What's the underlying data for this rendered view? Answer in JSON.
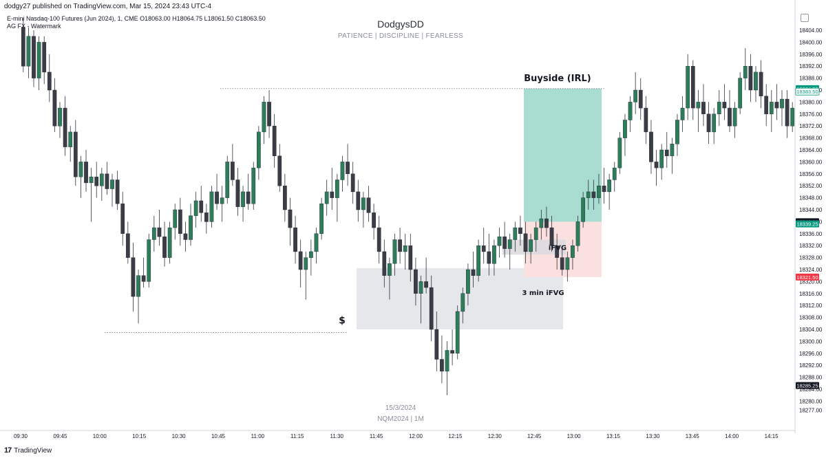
{
  "header": {
    "publisher": "dodgy27 published on TradingView.com, Mar 15, 2024 23:43 UTC-4",
    "symbol_line": "E-mini Nasdaq-100 Futures (Jun 2024), 1, CME  O18063.00  H18064.75  L18061.50  C18063.50",
    "indicator": "AG FX - Watermark"
  },
  "watermark": {
    "title": "DodgysDD",
    "subtitle": "PATIENCE   |   DISCIPLINE   |   FEARLESS",
    "date": "15/3/2024",
    "symbol_interval": "NQM2024  |  1M"
  },
  "footer": {
    "brand": "TradingView",
    "logo": "17"
  },
  "colors": {
    "bull": "#2e7d5a",
    "bear": "#3a3d45",
    "buy_zone": "#a9ddd1",
    "sell_zone": "#fbe0e0",
    "fvg_zone": "#e6e7eb",
    "ifvg_small": "#d9d9dd",
    "price_tag_green": "#089981",
    "price_tag_red": "#f23645",
    "price_tag_dark": "#131722"
  },
  "chart_data": {
    "type": "candlestick",
    "ylim": [
      18275,
      18408
    ],
    "y_ticks": [
      "18404.00",
      "18400.00",
      "18396.00",
      "18392.00",
      "18388.00",
      "18384.00",
      "18380.00",
      "18376.00",
      "18372.00",
      "18368.00",
      "18364.00",
      "18360.00",
      "18356.00",
      "18352.00",
      "18348.00",
      "18344.00",
      "18340.00",
      "18336.00",
      "18332.00",
      "18328.00",
      "18324.00",
      "18320.00",
      "18316.00",
      "18312.00",
      "18308.00",
      "18304.00",
      "18300.00",
      "18296.00",
      "18292.00",
      "18288.00",
      "18284.00",
      "18280.00",
      "18277.00"
    ],
    "x_ticks": [
      "09:30",
      "09:45",
      "10:00",
      "10:15",
      "10:30",
      "10:45",
      "11:00",
      "11:15",
      "11:30",
      "11:45",
      "12:00",
      "12:15",
      "12:30",
      "12:45",
      "13:00",
      "13:15",
      "13:30",
      "13:45",
      "14:00",
      "14:15"
    ],
    "price_tags": [
      {
        "label": "18384.50",
        "price": 18384.5,
        "style": "green"
      },
      {
        "label": "18383.50",
        "price": 18383.5,
        "style": "outline"
      },
      {
        "label": "18340.00",
        "price": 18340.0,
        "style": "dark"
      },
      {
        "label": "18339.25",
        "price": 18339.25,
        "style": "green"
      },
      {
        "label": "18321.50",
        "price": 18321.5,
        "style": "red"
      },
      {
        "label": "18285.25",
        "price": 18285.25,
        "style": "dark"
      }
    ],
    "candles_ohlc": [
      [
        18405,
        18408,
        18390,
        18392
      ],
      [
        18392,
        18405,
        18388,
        18402
      ],
      [
        18402,
        18404,
        18385,
        18388
      ],
      [
        18388,
        18402,
        18384,
        18400
      ],
      [
        18400,
        18402,
        18386,
        18390
      ],
      [
        18390,
        18396,
        18380,
        18384
      ],
      [
        18384,
        18388,
        18370,
        18372
      ],
      [
        18372,
        18380,
        18368,
        18378
      ],
      [
        18378,
        18382,
        18362,
        18365
      ],
      [
        18365,
        18372,
        18360,
        18370
      ],
      [
        18370,
        18374,
        18352,
        18355
      ],
      [
        18355,
        18362,
        18348,
        18360
      ],
      [
        18360,
        18364,
        18350,
        18353
      ],
      [
        18353,
        18358,
        18340,
        18355
      ],
      [
        18355,
        18360,
        18348,
        18352
      ],
      [
        18352,
        18358,
        18347,
        18356
      ],
      [
        18356,
        18360,
        18349,
        18351
      ],
      [
        18351,
        18356,
        18345,
        18354
      ],
      [
        18354,
        18357,
        18344,
        18346
      ],
      [
        18346,
        18350,
        18332,
        18336
      ],
      [
        18336,
        18340,
        18326,
        18328
      ],
      [
        18328,
        18333,
        18310,
        18315
      ],
      [
        18315,
        18324,
        18306,
        18322
      ],
      [
        18322,
        18328,
        18318,
        18320
      ],
      [
        18320,
        18336,
        18318,
        18334
      ],
      [
        18334,
        18342,
        18330,
        18338
      ],
      [
        18338,
        18344,
        18332,
        18335
      ],
      [
        18335,
        18340,
        18325,
        18328
      ],
      [
        18328,
        18340,
        18326,
        18338
      ],
      [
        18338,
        18346,
        18334,
        18344
      ],
      [
        18344,
        18348,
        18332,
        18336
      ],
      [
        18336,
        18340,
        18330,
        18334
      ],
      [
        18334,
        18346,
        18332,
        18342
      ],
      [
        18342,
        18350,
        18338,
        18347
      ],
      [
        18347,
        18352,
        18340,
        18343
      ],
      [
        18343,
        18346,
        18336,
        18340
      ],
      [
        18340,
        18352,
        18338,
        18350
      ],
      [
        18350,
        18356,
        18344,
        18346
      ],
      [
        18346,
        18352,
        18340,
        18348
      ],
      [
        18348,
        18362,
        18346,
        18360
      ],
      [
        18360,
        18366,
        18352,
        18354
      ],
      [
        18354,
        18358,
        18342,
        18345
      ],
      [
        18345,
        18352,
        18340,
        18350
      ],
      [
        18350,
        18356,
        18344,
        18346
      ],
      [
        18346,
        18360,
        18344,
        18358
      ],
      [
        18358,
        18372,
        18354,
        18370
      ],
      [
        18370,
        18382,
        18366,
        18380
      ],
      [
        18380,
        18384,
        18368,
        18372
      ],
      [
        18372,
        18376,
        18358,
        18362
      ],
      [
        18362,
        18366,
        18350,
        18352
      ],
      [
        18352,
        18356,
        18340,
        18344
      ],
      [
        18344,
        18348,
        18332,
        18338
      ],
      [
        18338,
        18342,
        18326,
        18330
      ],
      [
        18330,
        18334,
        18318,
        18324
      ],
      [
        18324,
        18330,
        18314,
        18328
      ],
      [
        18328,
        18334,
        18322,
        18330
      ],
      [
        18330,
        18338,
        18326,
        18336
      ],
      [
        18336,
        18348,
        18334,
        18346
      ],
      [
        18346,
        18354,
        18342,
        18350
      ],
      [
        18350,
        18358,
        18344,
        18348
      ],
      [
        18348,
        18356,
        18340,
        18354
      ],
      [
        18354,
        18362,
        18350,
        18360
      ],
      [
        18360,
        18366,
        18352,
        18356
      ],
      [
        18356,
        18360,
        18346,
        18350
      ],
      [
        18350,
        18354,
        18340,
        18344
      ],
      [
        18344,
        18350,
        18338,
        18348
      ],
      [
        18348,
        18352,
        18340,
        18343
      ],
      [
        18343,
        18346,
        18334,
        18338
      ],
      [
        18338,
        18342,
        18326,
        18330
      ],
      [
        18330,
        18334,
        18318,
        18322
      ],
      [
        18322,
        18328,
        18314,
        18326
      ],
      [
        18326,
        18336,
        18322,
        18334
      ],
      [
        18334,
        18338,
        18326,
        18330
      ],
      [
        18330,
        18336,
        18324,
        18332
      ],
      [
        18332,
        18336,
        18320,
        18324
      ],
      [
        18324,
        18328,
        18312,
        18316
      ],
      [
        18316,
        18322,
        18306,
        18320
      ],
      [
        18320,
        18328,
        18316,
        18318
      ],
      [
        18318,
        18322,
        18300,
        18304
      ],
      [
        18304,
        18310,
        18290,
        18294
      ],
      [
        18294,
        18302,
        18286,
        18290
      ],
      [
        18290,
        18300,
        18282,
        18297
      ],
      [
        18297,
        18304,
        18292,
        18296
      ],
      [
        18296,
        18312,
        18294,
        18310
      ],
      [
        18310,
        18318,
        18306,
        18316
      ],
      [
        18316,
        18326,
        18312,
        18324
      ],
      [
        18324,
        18330,
        18318,
        18322
      ],
      [
        18322,
        18334,
        18320,
        18332
      ],
      [
        18332,
        18338,
        18326,
        18330
      ],
      [
        18330,
        18336,
        18322,
        18326
      ],
      [
        18326,
        18334,
        18322,
        18332
      ],
      [
        18332,
        18338,
        18328,
        18335
      ],
      [
        18335,
        18340,
        18328,
        18331
      ],
      [
        18331,
        18336,
        18324,
        18334
      ],
      [
        18334,
        18340,
        18330,
        18338
      ],
      [
        18338,
        18342,
        18332,
        18336
      ],
      [
        18336,
        18340,
        18326,
        18330
      ],
      [
        18330,
        18336,
        18326,
        18334
      ],
      [
        18334,
        18340,
        18330,
        18338
      ],
      [
        18338,
        18344,
        18334,
        18341
      ],
      [
        18341,
        18345,
        18335,
        18338
      ],
      [
        18338,
        18342,
        18330,
        18332
      ],
      [
        18332,
        18336,
        18324,
        18328
      ],
      [
        18328,
        18332,
        18322,
        18324
      ],
      [
        18324,
        18330,
        18320,
        18328
      ],
      [
        18328,
        18334,
        18324,
        18332
      ],
      [
        18332,
        18342,
        18330,
        18340
      ],
      [
        18340,
        18350,
        18338,
        18348
      ],
      [
        18348,
        18354,
        18344,
        18350
      ],
      [
        18350,
        18354,
        18344,
        18348
      ],
      [
        18348,
        18356,
        18346,
        18352
      ],
      [
        18352,
        18358,
        18346,
        18350
      ],
      [
        18350,
        18356,
        18344,
        18354
      ],
      [
        18354,
        18360,
        18350,
        18358
      ],
      [
        18358,
        18370,
        18356,
        18368
      ],
      [
        18368,
        18376,
        18362,
        18374
      ],
      [
        18374,
        18382,
        18370,
        18380
      ],
      [
        18380,
        18390,
        18376,
        18384
      ],
      [
        18384,
        18388,
        18374,
        18378
      ],
      [
        18378,
        18382,
        18366,
        18370
      ],
      [
        18370,
        18374,
        18356,
        18360
      ],
      [
        18360,
        18364,
        18352,
        18358
      ],
      [
        18358,
        18366,
        18354,
        18364
      ],
      [
        18364,
        18370,
        18358,
        18362
      ],
      [
        18362,
        18368,
        18356,
        18366
      ],
      [
        18366,
        18376,
        18362,
        18374
      ],
      [
        18374,
        18382,
        18370,
        18378
      ],
      [
        18378,
        18396,
        18374,
        18392
      ],
      [
        18392,
        18394,
        18374,
        18378
      ],
      [
        18378,
        18384,
        18370,
        18380
      ],
      [
        18380,
        18386,
        18372,
        18376
      ],
      [
        18376,
        18380,
        18366,
        18370
      ],
      [
        18370,
        18378,
        18366,
        18376
      ],
      [
        18376,
        18384,
        18372,
        18380
      ],
      [
        18380,
        18386,
        18374,
        18378
      ],
      [
        18378,
        18384,
        18370,
        18372
      ],
      [
        18372,
        18380,
        18368,
        18378
      ],
      [
        18378,
        18390,
        18376,
        18388
      ],
      [
        18388,
        18398,
        18384,
        18392
      ],
      [
        18392,
        18396,
        18380,
        18384
      ],
      [
        18384,
        18392,
        18380,
        18390
      ],
      [
        18390,
        18394,
        18378,
        18382
      ],
      [
        18382,
        18386,
        18372,
        18376
      ],
      [
        18376,
        18384,
        18370,
        18380
      ],
      [
        18380,
        18386,
        18374,
        18378
      ],
      [
        18378,
        18384,
        18372,
        18381
      ],
      [
        18381,
        18384,
        18368,
        18372
      ],
      [
        18372,
        18380,
        18370,
        18378
      ]
    ],
    "annotations": [
      {
        "label": "Buyside (IRL)",
        "type": "text"
      },
      {
        "label": "iFVG",
        "type": "text"
      },
      {
        "label": "3 min iFVG",
        "type": "text"
      },
      {
        "label": "$",
        "type": "text"
      }
    ]
  }
}
